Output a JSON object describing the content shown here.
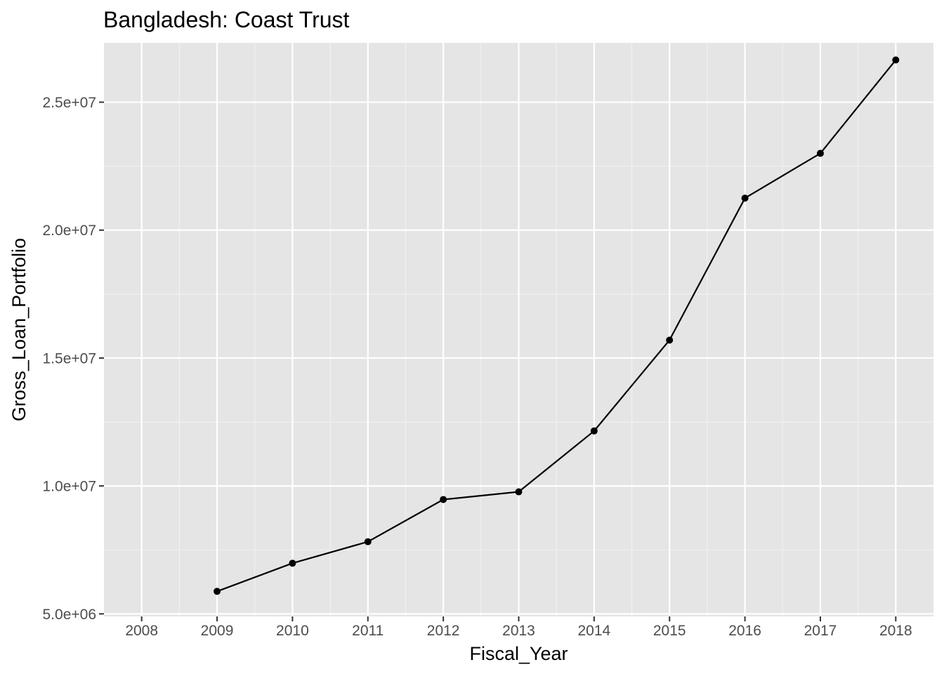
{
  "chart_data": {
    "type": "line",
    "title": "Bangladesh:  Coast Trust",
    "xlabel": "Fiscal_Year",
    "ylabel": "Gross_Loan_Portfolio",
    "x_ticks": [
      "2008",
      "2009",
      "2010",
      "2011",
      "2012",
      "2013",
      "2014",
      "2015",
      "2016",
      "2017",
      "2018"
    ],
    "y_ticks": [
      "5.0e+06",
      "1.0e+07",
      "1.5e+07",
      "2.0e+07",
      "2.5e+07"
    ],
    "y_tick_values": [
      5000000,
      10000000,
      15000000,
      20000000,
      25000000
    ],
    "xlim": [
      2007.5,
      2018.5
    ],
    "ylim": [
      4900000,
      27320000
    ],
    "grid": true,
    "background": "#e5e5e5",
    "line_color": "#000000",
    "series": [
      {
        "x": [
          2009,
          2010,
          2011,
          2012,
          2013,
          2014,
          2015,
          2016,
          2017,
          2018
        ],
        "values": [
          5880000,
          6980000,
          7820000,
          9470000,
          9770000,
          12150000,
          15700000,
          21250000,
          23000000,
          26650000
        ]
      }
    ]
  }
}
